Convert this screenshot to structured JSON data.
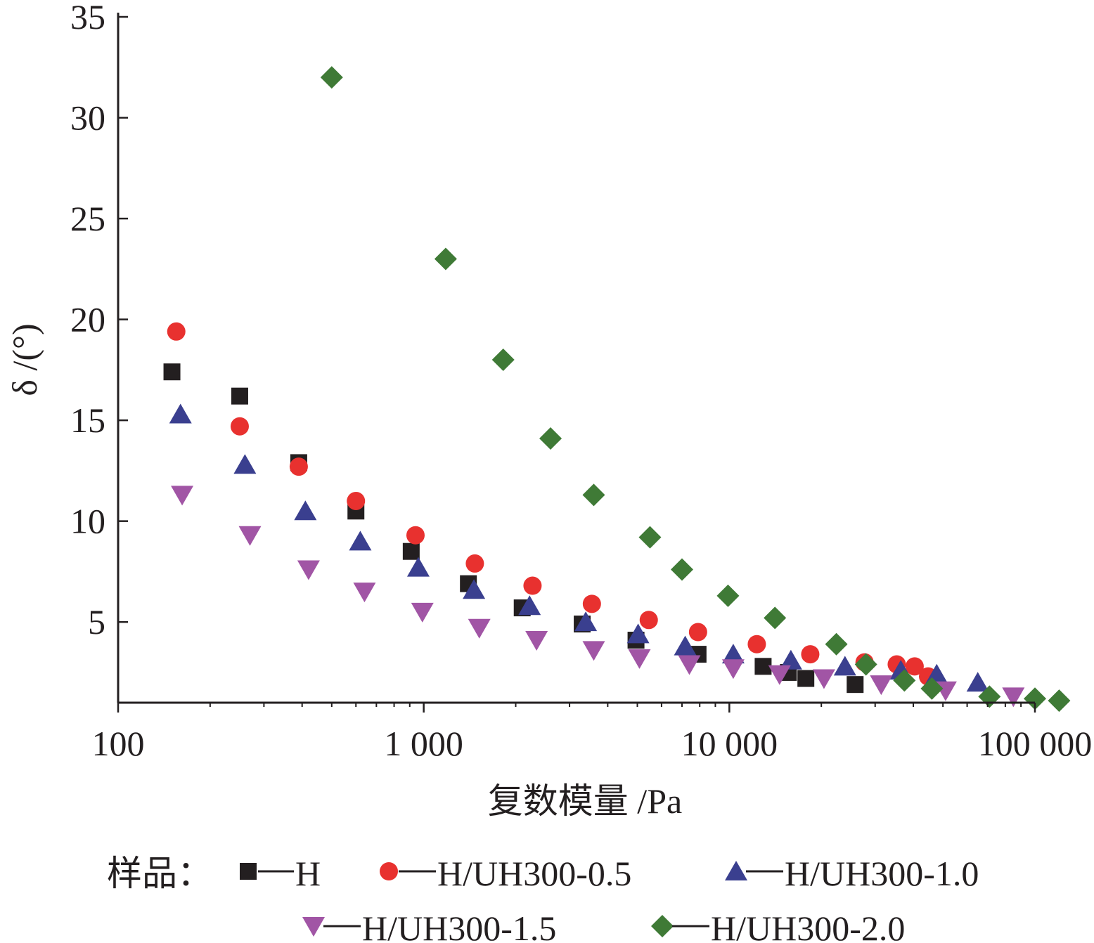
{
  "chart_data": {
    "type": "scatter",
    "x_scale": "log",
    "xlim": [
      100,
      100000
    ],
    "ylim": [
      1,
      35
    ],
    "xlabel": "复数模量 /Pa",
    "ylabel": "δ /(°)",
    "x_ticks": [
      {
        "value": 100,
        "label": "100"
      },
      {
        "value": 1000,
        "label": "1 000"
      },
      {
        "value": 10000,
        "label": "10 000"
      },
      {
        "value": 100000,
        "label": "100 000"
      }
    ],
    "y_ticks": [
      {
        "value": 5,
        "label": "5"
      },
      {
        "value": 10,
        "label": "10"
      },
      {
        "value": 15,
        "label": "15"
      },
      {
        "value": 20,
        "label": "20"
      },
      {
        "value": 25,
        "label": "25"
      },
      {
        "value": 30,
        "label": "30"
      },
      {
        "value": 35,
        "label": "35"
      }
    ],
    "grid": false,
    "legend": {
      "title": "样品：",
      "position": "bottom"
    },
    "series": [
      {
        "name": "H",
        "marker": "square",
        "color": "#231f20",
        "x": [
          150,
          250,
          390,
          600,
          910,
          1400,
          2100,
          3300,
          4950,
          7900,
          12900,
          15600,
          17800,
          25800
        ],
        "y": [
          17.4,
          16.2,
          12.9,
          10.5,
          8.5,
          6.9,
          5.7,
          4.9,
          4.1,
          3.4,
          2.8,
          2.5,
          2.2,
          1.9
        ]
      },
      {
        "name": "H/UH300-0.5",
        "marker": "circle",
        "color": "#e8312f",
        "x": [
          155,
          250,
          390,
          600,
          940,
          1470,
          2270,
          3550,
          5450,
          7900,
          12300,
          18400,
          27700,
          35300,
          40400,
          44700
        ],
        "y": [
          19.4,
          14.7,
          12.7,
          11.0,
          9.3,
          7.9,
          6.8,
          5.9,
          5.1,
          4.5,
          3.9,
          3.4,
          3.0,
          2.9,
          2.8,
          2.3
        ]
      },
      {
        "name": "H/UH300-1.0",
        "marker": "triangle-up",
        "color": "#3a3f8f",
        "x": [
          160,
          260,
          410,
          620,
          960,
          1460,
          2220,
          3390,
          5030,
          7170,
          10300,
          15900,
          23900,
          36400,
          47700,
          65000
        ],
        "y": [
          15.3,
          12.8,
          10.5,
          9.0,
          7.7,
          6.6,
          5.8,
          5.0,
          4.4,
          3.8,
          3.4,
          3.1,
          2.8,
          2.6,
          2.4,
          2.0
        ]
      },
      {
        "name": "H/UH300-1.5",
        "marker": "triangle-down",
        "color": "#a155a5",
        "x": [
          162,
          270,
          420,
          640,
          990,
          1520,
          2340,
          3600,
          5080,
          7400,
          10300,
          14600,
          20400,
          31400,
          51000,
          85000
        ],
        "y": [
          11.3,
          9.3,
          7.6,
          6.5,
          5.5,
          4.7,
          4.1,
          3.6,
          3.2,
          2.9,
          2.7,
          2.4,
          2.2,
          1.9,
          1.6,
          1.3
        ]
      },
      {
        "name": "H/UH300-2.0",
        "marker": "diamond",
        "color": "#3f7a36",
        "x": [
          500,
          1180,
          1820,
          2600,
          3600,
          5500,
          7000,
          9900,
          14100,
          22400,
          28000,
          37400,
          46000,
          71000,
          100000,
          120000
        ],
        "y": [
          32.0,
          23.0,
          18.0,
          14.1,
          11.3,
          9.2,
          7.6,
          6.3,
          5.2,
          3.9,
          2.9,
          2.1,
          1.7,
          1.3,
          1.2,
          1.1
        ]
      }
    ]
  }
}
